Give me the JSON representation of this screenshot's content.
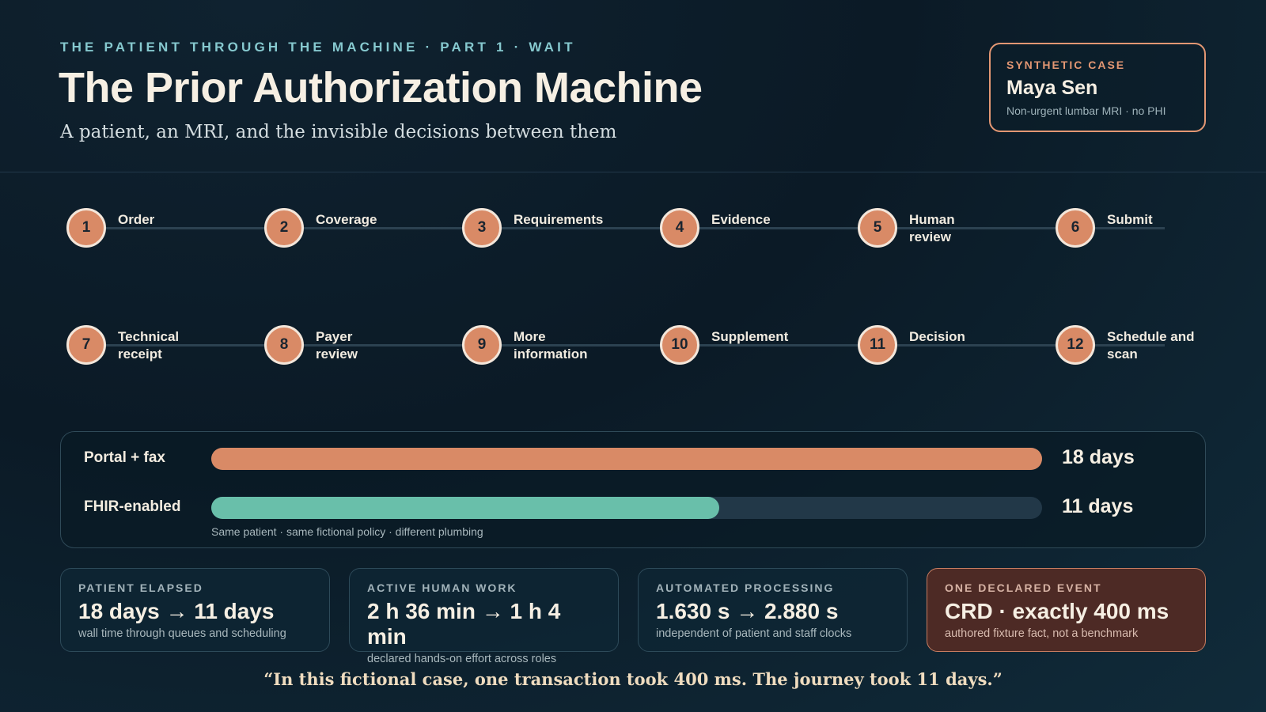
{
  "header": {
    "kicker": "THE PATIENT THROUGH THE MACHINE · PART 1 · WAIT",
    "title": "The Prior Authorization Machine",
    "subtitle": "A patient, an MRI, and the invisible decisions between them"
  },
  "case_card": {
    "label": "SYNTHETIC CASE",
    "name": "Maya Sen",
    "description": "Non-urgent lumbar MRI · no PHI"
  },
  "steps": [
    {
      "number": "1",
      "label": "Order"
    },
    {
      "number": "2",
      "label": "Coverage"
    },
    {
      "number": "3",
      "label": "Requirements"
    },
    {
      "number": "4",
      "label": "Evidence"
    },
    {
      "number": "5",
      "label": "Human review"
    },
    {
      "number": "6",
      "label": "Submit"
    },
    {
      "number": "7",
      "label": "Technical receipt"
    },
    {
      "number": "8",
      "label": "Payer review"
    },
    {
      "number": "9",
      "label": "More information"
    },
    {
      "number": "10",
      "label": "Supplement"
    },
    {
      "number": "11",
      "label": "Decision"
    },
    {
      "number": "12",
      "label": "Schedule and scan"
    }
  ],
  "chart_data": {
    "type": "bar",
    "orientation": "horizontal",
    "categories": [
      "Portal + fax",
      "FHIR-enabled"
    ],
    "values": [
      18,
      11
    ],
    "value_labels": [
      "18 days",
      "11 days"
    ],
    "xlim": [
      0,
      18
    ],
    "colors": [
      "#d98a66",
      "#69bfaa"
    ],
    "note": "Same patient · same fictional policy · different plumbing"
  },
  "metrics": [
    {
      "label": "PATIENT ELAPSED",
      "value": "18 days → 11 days",
      "description": "wall time through queues and scheduling"
    },
    {
      "label": "ACTIVE HUMAN WORK",
      "value": "2 h 36 min → 1 h 4 min",
      "description": "declared hands-on effort across roles"
    },
    {
      "label": "AUTOMATED PROCESSING",
      "value": "1.630 s → 2.880 s",
      "description": "independent of patient and staff clocks"
    },
    {
      "label": "ONE DECLARED EVENT",
      "value": "CRD · exactly 400 ms",
      "description": "authored fixture fact, not a benchmark"
    }
  ],
  "quote": "“In this fictional case, one transaction took 400 ms. The journey took 11 days.”",
  "colors": {
    "accent_orange": "#d98a66",
    "accent_teal": "#69bfaa",
    "kicker_blue": "#86c9cf",
    "highlight_card": "#4d2a25"
  }
}
